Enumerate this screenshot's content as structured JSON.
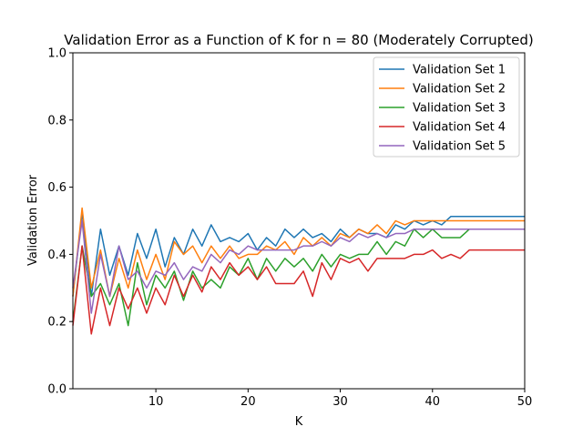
{
  "chart_data": {
    "type": "line",
    "title": "Validation Error as a Function of K for n = 80 (Moderately Corrupted)",
    "xlabel": "K",
    "ylabel": "Validation Error",
    "xlim": [
      1,
      50
    ],
    "ylim": [
      0,
      1.0
    ],
    "xticks": [
      10,
      20,
      30,
      40,
      50
    ],
    "yticks": [
      0.0,
      0.2,
      0.4,
      0.6,
      0.8,
      1.0
    ],
    "xtick_labels": [
      "10",
      "20",
      "30",
      "40",
      "50"
    ],
    "ytick_labels": [
      "0.0",
      "0.2",
      "0.4",
      "0.6",
      "0.8",
      "1.0"
    ],
    "grid": false,
    "legend_position": "top-right",
    "x": [
      1,
      2,
      3,
      4,
      5,
      6,
      7,
      8,
      9,
      10,
      11,
      12,
      13,
      14,
      15,
      16,
      17,
      18,
      19,
      20,
      21,
      22,
      23,
      24,
      25,
      26,
      27,
      28,
      29,
      30,
      31,
      32,
      33,
      34,
      35,
      36,
      37,
      38,
      39,
      40,
      41,
      42,
      43,
      44,
      45,
      46,
      47,
      48,
      49,
      50
    ],
    "series": [
      {
        "name": "Validation Set 1",
        "color": "#1f77b4",
        "values": [
          0.275,
          0.525,
          0.275,
          0.475,
          0.338,
          0.425,
          0.338,
          0.462,
          0.388,
          0.475,
          0.363,
          0.45,
          0.4,
          0.475,
          0.425,
          0.488,
          0.438,
          0.45,
          0.438,
          0.462,
          0.413,
          0.45,
          0.425,
          0.475,
          0.45,
          0.475,
          0.45,
          0.462,
          0.438,
          0.475,
          0.45,
          0.475,
          0.462,
          0.462,
          0.45,
          0.488,
          0.475,
          0.5,
          0.488,
          0.5,
          0.488,
          0.513,
          0.513,
          0.513,
          0.513,
          0.513,
          0.513,
          0.513,
          0.513,
          0.513
        ]
      },
      {
        "name": "Validation Set 2",
        "color": "#ff7f0e",
        "values": [
          0.275,
          0.538,
          0.3,
          0.413,
          0.275,
          0.388,
          0.3,
          0.413,
          0.325,
          0.4,
          0.325,
          0.438,
          0.4,
          0.425,
          0.375,
          0.425,
          0.388,
          0.425,
          0.388,
          0.4,
          0.4,
          0.425,
          0.413,
          0.438,
          0.4,
          0.45,
          0.425,
          0.45,
          0.425,
          0.462,
          0.45,
          0.475,
          0.462,
          0.488,
          0.462,
          0.5,
          0.488,
          0.5,
          0.5,
          0.5,
          0.5,
          0.5,
          0.5,
          0.5,
          0.5,
          0.5,
          0.5,
          0.5,
          0.5,
          0.5
        ]
      },
      {
        "name": "Validation Set 3",
        "color": "#2ca02c",
        "values": [
          0.2,
          0.425,
          0.275,
          0.313,
          0.25,
          0.313,
          0.188,
          0.375,
          0.25,
          0.338,
          0.3,
          0.35,
          0.263,
          0.35,
          0.3,
          0.325,
          0.3,
          0.363,
          0.338,
          0.388,
          0.325,
          0.388,
          0.35,
          0.388,
          0.363,
          0.388,
          0.35,
          0.4,
          0.363,
          0.4,
          0.388,
          0.4,
          0.4,
          0.438,
          0.4,
          0.438,
          0.425,
          0.475,
          0.45,
          0.475,
          0.45,
          0.45,
          0.45,
          0.475,
          0.475,
          0.475,
          0.475,
          0.475,
          0.475,
          0.475
        ]
      },
      {
        "name": "Validation Set 4",
        "color": "#d62728",
        "values": [
          0.188,
          0.425,
          0.163,
          0.3,
          0.188,
          0.3,
          0.238,
          0.3,
          0.225,
          0.3,
          0.25,
          0.338,
          0.275,
          0.338,
          0.288,
          0.363,
          0.325,
          0.375,
          0.338,
          0.363,
          0.325,
          0.363,
          0.313,
          0.313,
          0.313,
          0.35,
          0.275,
          0.375,
          0.325,
          0.388,
          0.375,
          0.388,
          0.35,
          0.388,
          0.388,
          0.388,
          0.388,
          0.4,
          0.4,
          0.413,
          0.388,
          0.4,
          0.388,
          0.413,
          0.413,
          0.413,
          0.413,
          0.413,
          0.413,
          0.413
        ]
      },
      {
        "name": "Validation Set 5",
        "color": "#9467bd",
        "values": [
          0.3,
          0.5,
          0.225,
          0.4,
          0.275,
          0.425,
          0.325,
          0.35,
          0.3,
          0.35,
          0.338,
          0.375,
          0.325,
          0.363,
          0.35,
          0.4,
          0.375,
          0.413,
          0.4,
          0.425,
          0.413,
          0.413,
          0.413,
          0.413,
          0.413,
          0.425,
          0.425,
          0.438,
          0.425,
          0.45,
          0.438,
          0.462,
          0.45,
          0.462,
          0.45,
          0.462,
          0.462,
          0.475,
          0.475,
          0.475,
          0.475,
          0.475,
          0.475,
          0.475,
          0.475,
          0.475,
          0.475,
          0.475,
          0.475,
          0.475
        ]
      }
    ]
  }
}
